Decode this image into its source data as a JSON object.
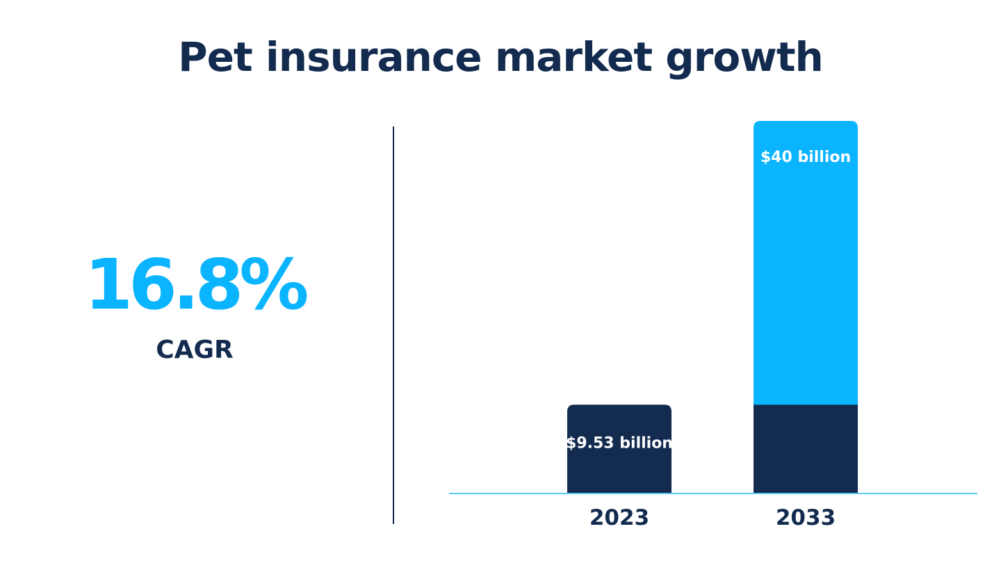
{
  "title": "Pet insurance market growth",
  "kpi": {
    "value": "16.8%",
    "label": "CAGR"
  },
  "colors": {
    "navy": "#132b4f",
    "blue": "#0ab4ff",
    "axis": "#5fc8f5"
  },
  "chart_data": {
    "type": "bar",
    "categories": [
      "2023",
      "2033"
    ],
    "values": [
      9.53,
      40
    ],
    "unit": "billion USD",
    "data_labels": [
      "$9.53 billion",
      "$40 billion"
    ],
    "stacked_base_on_2033": 9.53,
    "grid": false,
    "legend": "none"
  }
}
